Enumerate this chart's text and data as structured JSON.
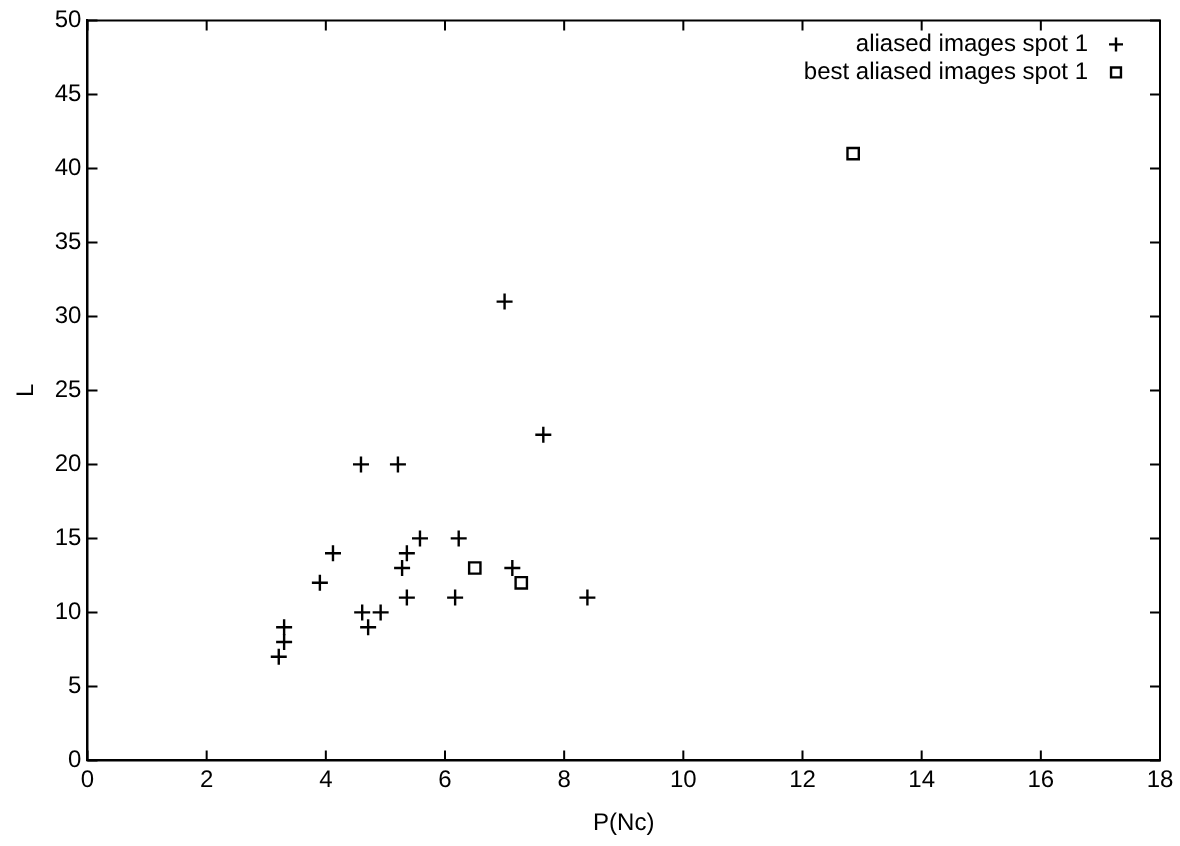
{
  "chart_data": {
    "type": "scatter",
    "xlabel": "P(Nc)",
    "ylabel": "L",
    "xlim": [
      0,
      18
    ],
    "xticks": [
      0,
      2,
      4,
      6,
      8,
      10,
      12,
      14,
      16,
      18
    ],
    "ylim": [
      0,
      50
    ],
    "yticks": [
      0,
      5,
      10,
      15,
      20,
      25,
      30,
      35,
      40,
      45,
      50
    ],
    "grid": false,
    "legend": "top right",
    "series": [
      {
        "name": "aliased images spot 1",
        "color": "#000000",
        "marker": "cross",
        "x": [
          3.21,
          3.3,
          3.3,
          3.9,
          4.12,
          4.59,
          4.61,
          4.71,
          4.92,
          5.21,
          5.28,
          5.36,
          5.36,
          5.58,
          6.17,
          6.23,
          7.0,
          7.13,
          7.65,
          8.39
        ],
        "values": [
          7,
          8,
          9,
          12,
          14,
          20,
          10,
          9,
          10,
          20,
          13,
          11,
          14,
          15,
          11,
          15,
          31,
          13,
          22,
          11
        ]
      },
      {
        "name": "best aliased images spot 1",
        "color": "#000000",
        "marker": "square",
        "x": [
          6.5,
          7.28,
          12.85
        ],
        "values": [
          13,
          12,
          41
        ]
      }
    ]
  }
}
